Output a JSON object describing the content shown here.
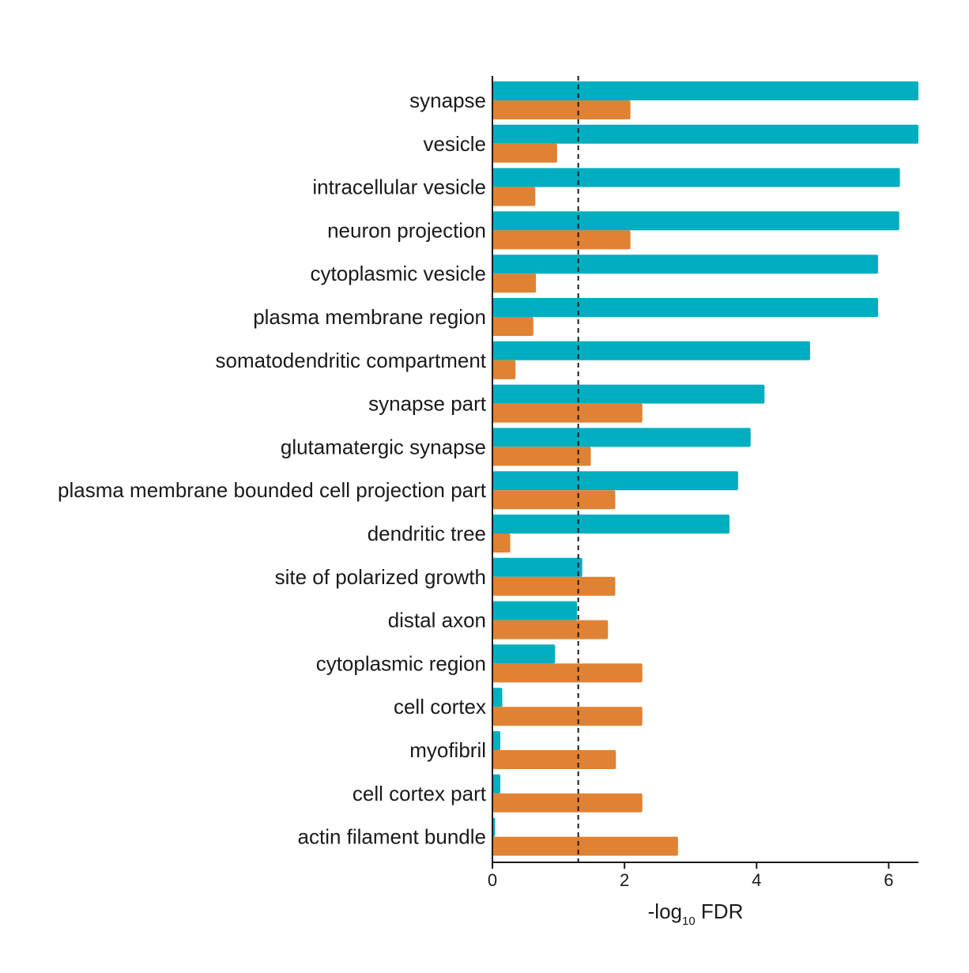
{
  "chart_data": {
    "type": "bar",
    "orientation": "horizontal",
    "categories": [
      "synapse",
      "vesicle",
      "intracellular vesicle",
      "neuron projection",
      "cytoplasmic vesicle",
      "plasma membrane region",
      "somatodendritic compartment",
      "synapse part",
      "glutamatergic synapse",
      "plasma membrane bounded cell projection part",
      "dendritic tree",
      "site of polarized growth",
      "distal axon",
      "cytoplasmic region",
      "cell cortex",
      "myofibril",
      "cell cortex part",
      "actin filament bundle"
    ],
    "series": [
      {
        "color": "#00aec0",
        "values": [
          6.45,
          6.45,
          6.17,
          6.16,
          5.84,
          5.84,
          4.81,
          4.12,
          3.91,
          3.72,
          3.59,
          1.36,
          1.28,
          0.95,
          0.15,
          0.12,
          0.12,
          0.04
        ]
      },
      {
        "color": "#e08233",
        "values": [
          2.09,
          0.98,
          0.65,
          2.09,
          0.66,
          0.62,
          0.35,
          2.27,
          1.49,
          1.86,
          0.27,
          1.86,
          1.75,
          2.27,
          2.27,
          1.87,
          2.27,
          2.81
        ]
      }
    ],
    "xlabel": {
      "prefix": "-log",
      "subscript": "10",
      "suffix": " FDR"
    },
    "xticks": [
      "0",
      "2",
      "4",
      "6"
    ],
    "xlim": [
      0,
      6.45
    ],
    "reference_line": 1.3,
    "grid": false,
    "legend": false
  }
}
